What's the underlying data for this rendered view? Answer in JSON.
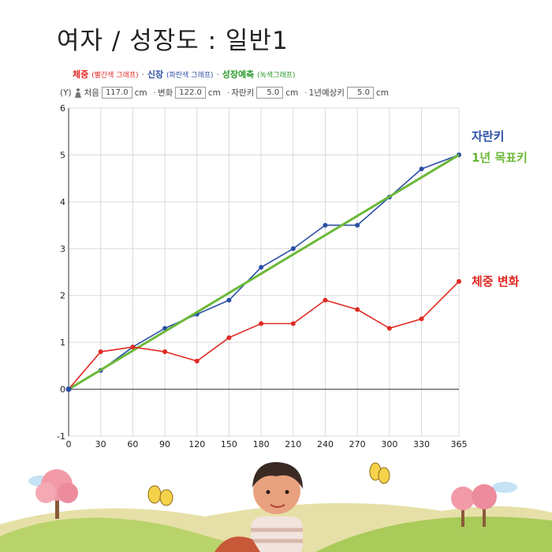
{
  "title": "여자 / 성장도 : 일반1",
  "legend": {
    "weight": "체중",
    "weight_note": "(빨간색 그래프)",
    "height": "신장",
    "height_note": "(파란색 그래프)",
    "forecast": "성장예측",
    "forecast_note": "(녹색그래프)",
    "sep": "·"
  },
  "inputs": {
    "y_label": "(Y)",
    "first_label": "처음",
    "first_value": "117.0",
    "cm1": "cm",
    "change_label": "변화",
    "change_value": "122.0",
    "cm2": "cm",
    "growth_label": "자란키",
    "growth_value": "5.0",
    "cm3": "cm",
    "expect_label": "1년예상키",
    "expect_value": "5.0",
    "cm4": "cm",
    "dot": "·"
  },
  "labels": {
    "height_series": "자란키",
    "forecast_series": "1년 목표키",
    "weight_series": "체중 변화"
  },
  "colors": {
    "height": "#2b4fa6",
    "forecast": "#6cb83a",
    "weight": "#e02a24",
    "grid": "#d9d9d9"
  },
  "chart_data": {
    "type": "line",
    "x": [
      0,
      30,
      60,
      90,
      120,
      150,
      180,
      210,
      240,
      270,
      300,
      330,
      365
    ],
    "xticks": [
      0,
      30,
      60,
      90,
      120,
      150,
      180,
      210,
      240,
      270,
      300,
      330,
      365
    ],
    "yticks": [
      -1,
      0,
      1,
      2,
      3,
      4,
      5,
      6
    ],
    "xlim": [
      0,
      365
    ],
    "ylim": [
      -1,
      6
    ],
    "grid": true,
    "series": [
      {
        "name": "자란키",
        "color": "#2b4fa6",
        "values": [
          0,
          0.4,
          0.9,
          1.3,
          1.6,
          1.9,
          2.6,
          3.0,
          3.5,
          3.5,
          4.1,
          4.7,
          5.0
        ]
      },
      {
        "name": "1년 목표키",
        "color": "#6cb83a",
        "x": [
          0,
          365
        ],
        "values": [
          0,
          5.0
        ]
      },
      {
        "name": "체중 변화",
        "color": "#e02a24",
        "values": [
          0,
          0.8,
          0.9,
          0.8,
          0.6,
          1.1,
          1.4,
          1.4,
          1.9,
          1.7,
          1.3,
          1.5,
          2.3
        ]
      }
    ]
  }
}
